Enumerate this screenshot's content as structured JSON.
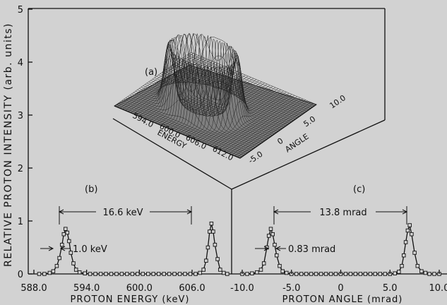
{
  "y_axis": {
    "title": "RELATIVE PROTON INTENSITY (arb. units)",
    "ticks": [
      "0",
      "1",
      "2",
      "3",
      "4",
      "5"
    ]
  },
  "panel_a": {
    "label": "(a)",
    "energy_label": "ENERGY",
    "angle_label": "ANGLE",
    "energy_ticks": [
      "594.0",
      "600.0",
      "606.0",
      "612.0"
    ],
    "angle_ticks": [
      "-5.0",
      "0",
      "5.0",
      "10.0"
    ]
  },
  "panel_b": {
    "label": "(b)",
    "xlabel": "PROTON ENERGY (keV)",
    "ticks": [
      "588.0",
      "594.0",
      "600.0",
      "606.0"
    ],
    "separation_label": "16.6 keV",
    "width_label": "1.0 keV"
  },
  "panel_c": {
    "label": "(c)",
    "xlabel": "PROTON ANGLE (mrad)",
    "ticks": [
      "-10.0",
      "-5.0",
      "0",
      "5.0",
      "10.0"
    ],
    "separation_label": "13.8 mrad",
    "width_label": "0.83 mrad"
  },
  "chart_data": [
    {
      "type": "line",
      "title": "(b)",
      "xlabel": "PROTON ENERGY (keV)",
      "ylabel": "RELATIVE PROTON INTENSITY (arb. units)",
      "xlim": [
        588.0,
        610.5
      ],
      "ylim": [
        0,
        5
      ],
      "series": [
        {
          "x": [
            588.6,
            589.2,
            589.8,
            590.2,
            590.6,
            590.9,
            591.2,
            591.4,
            591.6,
            591.8,
            592.0,
            592.2,
            592.5,
            592.8,
            593.2,
            593.8,
            594.4,
            595.0,
            595.6,
            596.2,
            596.8,
            597.4,
            598.0,
            598.6,
            599.2,
            599.8,
            600.4,
            601.0,
            601.6,
            602.2,
            602.8,
            603.4,
            604.0,
            604.6,
            605.2,
            605.8,
            606.4,
            606.9,
            607.3,
            607.6,
            607.8,
            608.0,
            608.2,
            608.4,
            608.6,
            608.9,
            609.2,
            609.6,
            610.0
          ],
          "y": [
            0.0,
            0.0,
            0.02,
            0.05,
            0.15,
            0.3,
            0.55,
            0.75,
            0.85,
            0.78,
            0.62,
            0.4,
            0.2,
            0.08,
            0.03,
            0.01,
            0.0,
            0.0,
            0.0,
            0.0,
            0.0,
            0.0,
            0.0,
            0.0,
            0.0,
            0.0,
            0.0,
            0.0,
            0.0,
            0.0,
            0.0,
            0.0,
            0.0,
            0.0,
            0.0,
            0.0,
            0.0,
            0.02,
            0.08,
            0.25,
            0.5,
            0.8,
            0.95,
            0.8,
            0.55,
            0.28,
            0.08,
            0.02,
            0.0
          ]
        }
      ],
      "annotations": [
        "16.6 keV",
        "1.0 keV"
      ]
    },
    {
      "type": "line",
      "title": "(c)",
      "xlabel": "PROTON ANGLE (mrad)",
      "ylabel": "RELATIVE PROTON INTENSITY (arb. units)",
      "xlim": [
        -10.0,
        10.0
      ],
      "ylim": [
        0,
        5
      ],
      "series": [
        {
          "x": [
            -10.0,
            -9.5,
            -9.0,
            -8.5,
            -8.1,
            -7.8,
            -7.5,
            -7.3,
            -7.1,
            -6.9,
            -6.7,
            -6.5,
            -6.2,
            -5.9,
            -5.5,
            -5.0,
            -4.5,
            -4.0,
            -3.5,
            -3.0,
            -2.5,
            -2.0,
            -1.5,
            -1.0,
            -0.5,
            0.0,
            0.5,
            1.0,
            1.5,
            2.0,
            2.5,
            3.0,
            3.5,
            4.0,
            4.5,
            5.0,
            5.5,
            5.9,
            6.2,
            6.4,
            6.6,
            6.8,
            7.0,
            7.2,
            7.5,
            7.8,
            8.2,
            8.6,
            9.0,
            9.5,
            10.0
          ],
          "y": [
            0.0,
            0.0,
            0.01,
            0.03,
            0.08,
            0.2,
            0.5,
            0.72,
            0.85,
            0.75,
            0.55,
            0.35,
            0.15,
            0.05,
            0.02,
            0.0,
            0.0,
            0.0,
            0.0,
            0.0,
            0.0,
            0.0,
            0.0,
            0.0,
            0.0,
            0.0,
            0.0,
            0.0,
            0.0,
            0.0,
            0.0,
            0.0,
            0.0,
            0.0,
            0.0,
            0.0,
            0.01,
            0.04,
            0.15,
            0.35,
            0.6,
            0.82,
            0.92,
            0.75,
            0.4,
            0.15,
            0.05,
            0.02,
            0.0,
            0.0,
            0.0
          ]
        }
      ],
      "annotations": [
        "13.8 mrad",
        "0.83 mrad"
      ]
    }
  ]
}
